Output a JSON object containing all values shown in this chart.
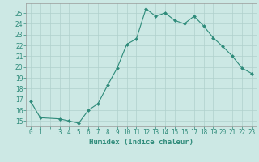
{
  "x": [
    0,
    1,
    3,
    4,
    5,
    6,
    7,
    8,
    9,
    10,
    11,
    12,
    13,
    14,
    15,
    16,
    17,
    18,
    19,
    20,
    21,
    22,
    23
  ],
  "y": [
    16.8,
    15.3,
    15.2,
    15.0,
    14.8,
    16.0,
    16.6,
    18.3,
    19.9,
    22.1,
    22.6,
    25.4,
    24.7,
    25.0,
    24.3,
    24.0,
    24.7,
    23.8,
    22.7,
    21.9,
    21.0,
    19.9,
    19.4
  ],
  "line_color": "#2e8b7a",
  "marker_color": "#2e8b7a",
  "bg_color": "#cce8e4",
  "grid_color": "#b0d0cc",
  "xlabel": "Humidex (Indice chaleur)",
  "xlim": [
    -0.5,
    23.5
  ],
  "ylim": [
    14.5,
    25.9
  ],
  "yticks": [
    15,
    16,
    17,
    18,
    19,
    20,
    21,
    22,
    23,
    24,
    25
  ],
  "label_fontsize": 6.5,
  "tick_fontsize": 5.5
}
